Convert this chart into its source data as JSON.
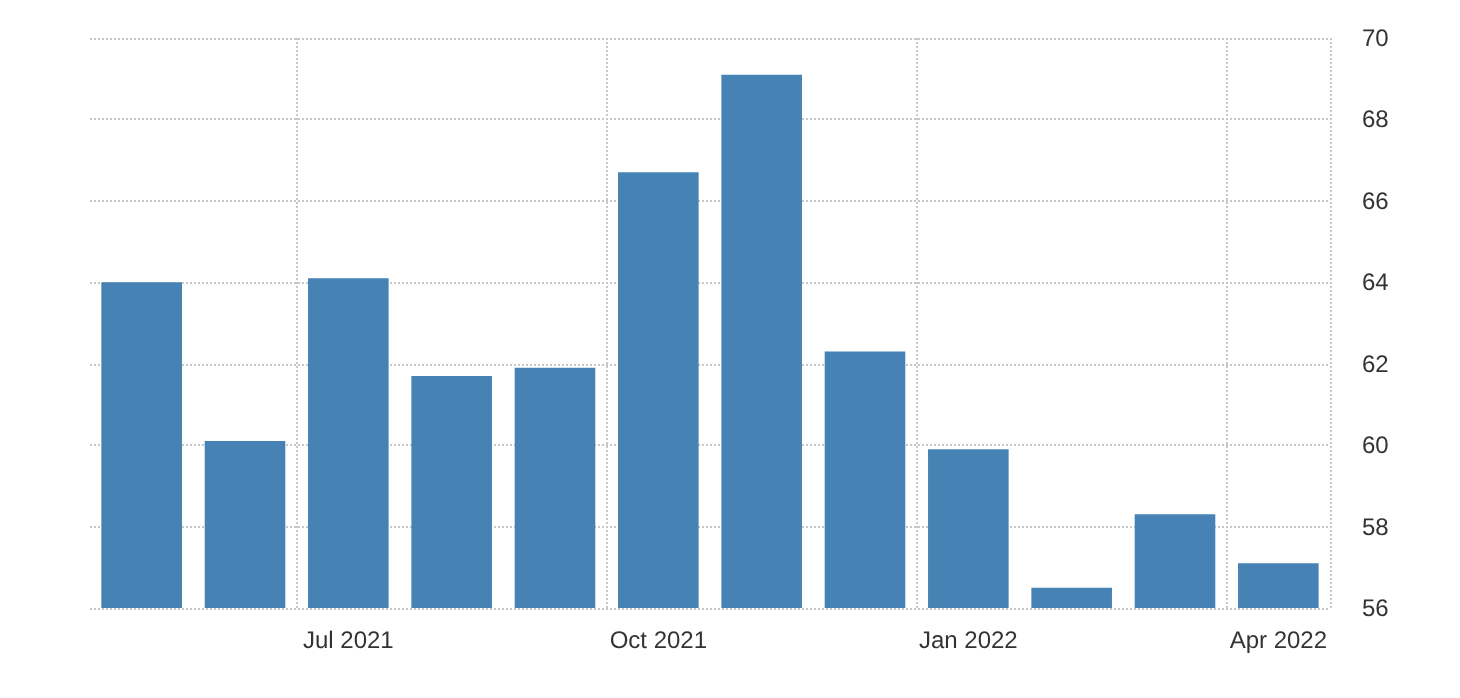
{
  "chart_data": {
    "type": "bar",
    "categories": [
      null,
      null,
      "Jul 2021",
      null,
      null,
      "Oct 2021",
      null,
      null,
      "Jan 2022",
      null,
      null,
      "Apr 2022"
    ],
    "values": [
      64.0,
      60.1,
      64.1,
      61.7,
      61.9,
      66.7,
      69.1,
      62.3,
      59.9,
      56.5,
      58.3,
      57.1
    ],
    "color": "#4682b4",
    "ylim": [
      56,
      70
    ],
    "yticks": [
      56,
      58,
      60,
      62,
      64,
      66,
      68,
      70
    ],
    "grid": true
  }
}
